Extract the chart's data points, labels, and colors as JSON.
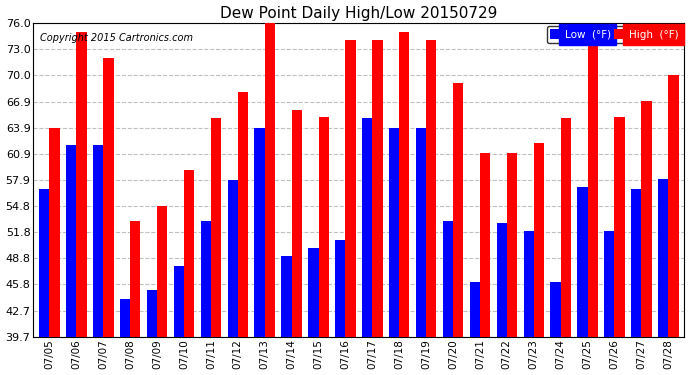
{
  "title": "Dew Point Daily High/Low 20150729",
  "copyright": "Copyright 2015 Cartronics.com",
  "dates": [
    "07/05",
    "07/06",
    "07/07",
    "07/08",
    "07/09",
    "07/10",
    "07/11",
    "07/12",
    "07/13",
    "07/14",
    "07/15",
    "07/16",
    "07/17",
    "07/18",
    "07/19",
    "07/20",
    "07/21",
    "07/22",
    "07/23",
    "07/24",
    "07/25",
    "07/26",
    "07/27",
    "07/28"
  ],
  "high_values": [
    63.9,
    75.0,
    72.0,
    53.1,
    54.8,
    59.0,
    65.0,
    68.0,
    76.0,
    65.9,
    65.1,
    74.1,
    74.1,
    75.0,
    74.1,
    69.1,
    61.0,
    61.0,
    62.1,
    65.0,
    73.9,
    65.1,
    67.0,
    70.0
  ],
  "low_values": [
    56.8,
    61.9,
    61.9,
    44.1,
    45.1,
    47.9,
    53.1,
    57.9,
    63.9,
    49.1,
    50.0,
    50.9,
    65.0,
    63.9,
    63.9,
    53.1,
    46.0,
    52.9,
    52.0,
    46.0,
    57.0,
    52.0,
    56.8,
    58.0
  ],
  "high_color": "#FF0000",
  "low_color": "#0000FF",
  "bg_color": "#FFFFFF",
  "plot_bg_color": "#FFFFFF",
  "grid_color": "#C0C0C0",
  "yticks": [
    39.7,
    42.7,
    45.8,
    48.8,
    51.8,
    54.8,
    57.9,
    60.9,
    63.9,
    66.9,
    70.0,
    73.0,
    76.0
  ],
  "ymin": 39.7,
  "ymax": 76.0,
  "bar_width": 0.38,
  "legend_low_label": "Low  (°F)",
  "legend_high_label": "High  (°F)"
}
